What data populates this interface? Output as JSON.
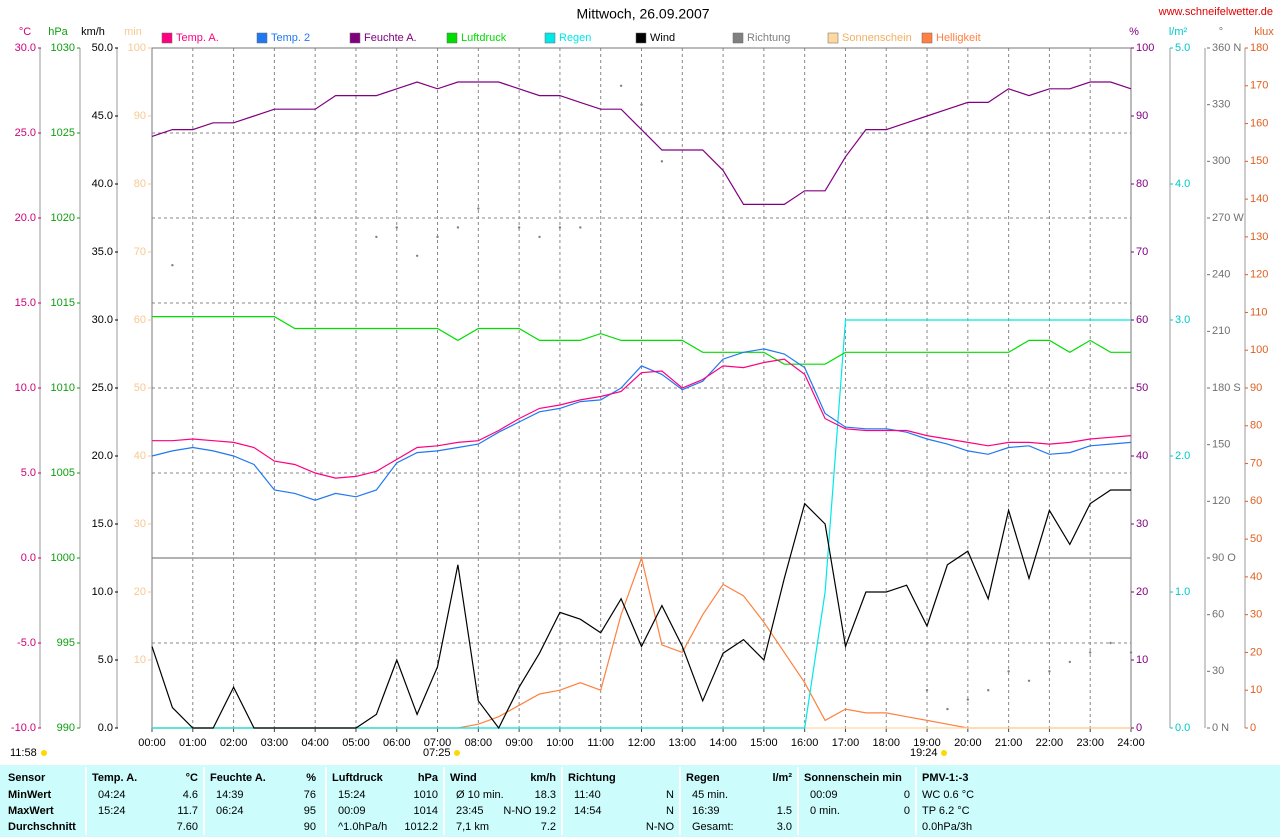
{
  "chart_data": {
    "type": "line",
    "title": "Mittwoch, 26.09.2007",
    "source": "www.schneifelwetter.de",
    "annotations": [
      "11:58",
      "07:25",
      "19:24"
    ],
    "grid": true,
    "x": [
      0,
      0.5,
      1,
      1.5,
      2,
      2.5,
      3,
      3.5,
      4,
      4.5,
      5,
      5.5,
      6,
      6.5,
      7,
      7.5,
      8,
      8.5,
      9,
      9.5,
      10,
      10.5,
      11,
      11.5,
      12,
      12.5,
      13,
      13.5,
      14,
      14.5,
      15,
      15.5,
      16,
      16.5,
      17,
      17.5,
      18,
      18.5,
      19,
      19.5,
      20,
      20.5,
      21,
      21.5,
      22,
      22.5,
      23,
      23.5,
      24
    ],
    "xlim": [
      0,
      24
    ],
    "xticks": [
      {
        "value": 0,
        "label": "00:00"
      },
      {
        "value": 1,
        "label": "01:00"
      },
      {
        "value": 2,
        "label": "02:00"
      },
      {
        "value": 3,
        "label": "03:00"
      },
      {
        "value": 4,
        "label": "04:00"
      },
      {
        "value": 5,
        "label": "05:00"
      },
      {
        "value": 6,
        "label": "06:00"
      },
      {
        "value": 7,
        "label": "07:00"
      },
      {
        "value": 8,
        "label": "08:00"
      },
      {
        "value": 9,
        "label": "09:00"
      },
      {
        "value": 10,
        "label": "10:00"
      },
      {
        "value": 11,
        "label": "11:00"
      },
      {
        "value": 12,
        "label": "12:00"
      },
      {
        "value": 13,
        "label": "13:00"
      },
      {
        "value": 14,
        "label": "14:00"
      },
      {
        "value": 15,
        "label": "15:00"
      },
      {
        "value": 16,
        "label": "16:00"
      },
      {
        "value": 17,
        "label": "17:00"
      },
      {
        "value": 18,
        "label": "18:00"
      },
      {
        "value": 19,
        "label": "19:00"
      },
      {
        "value": 20,
        "label": "20:00"
      },
      {
        "value": 21,
        "label": "21:00"
      },
      {
        "value": 22,
        "label": "22:00"
      },
      {
        "value": 23,
        "label": "23:00"
      },
      {
        "value": 24,
        "label": "24:00"
      }
    ],
    "axes": [
      {
        "unit": "°C",
        "color": "#d0007a",
        "lim": [
          -10,
          30
        ],
        "ticks": [
          {
            "value": -10,
            "label": "-10.0"
          },
          {
            "value": -5,
            "label": "-5.0"
          },
          {
            "value": 0,
            "label": "0.0"
          },
          {
            "value": 5,
            "label": "5.0"
          },
          {
            "value": 10,
            "label": "10.0"
          },
          {
            "value": 15,
            "label": "15.0"
          },
          {
            "value": 20,
            "label": "20.0"
          },
          {
            "value": 25,
            "label": "25.0"
          },
          {
            "value": 30,
            "label": "30.0"
          }
        ]
      },
      {
        "unit": "hPa",
        "color": "#10a010",
        "lim": [
          990,
          1030
        ],
        "ticks": [
          990,
          995,
          1000,
          1005,
          1010,
          1015,
          1020,
          1025,
          1030
        ]
      },
      {
        "unit": "km/h",
        "color": "#000000",
        "lim": [
          0,
          50
        ],
        "ticks": [
          {
            "value": 0,
            "label": "0.0"
          },
          {
            "value": 5,
            "label": "5.0"
          },
          {
            "value": 10,
            "label": "10.0"
          },
          {
            "value": 15,
            "label": "15.0"
          },
          {
            "value": 20,
            "label": "20.0"
          },
          {
            "value": 25,
            "label": "25.0"
          },
          {
            "value": 30,
            "label": "30.0"
          },
          {
            "value": 35,
            "label": "35.0"
          },
          {
            "value": 40,
            "label": "40.0"
          },
          {
            "value": 45,
            "label": "45.0"
          },
          {
            "value": 50,
            "label": "50.0"
          }
        ]
      },
      {
        "unit": "min",
        "color": "#f8c890",
        "lim": [
          0,
          100
        ],
        "ticks": [
          10,
          20,
          30,
          40,
          50,
          60,
          70,
          80,
          90,
          100
        ]
      },
      {
        "unit": "%",
        "color": "#800080",
        "lim": [
          0,
          100
        ],
        "ticks": [
          0,
          10,
          20,
          30,
          40,
          50,
          60,
          70,
          80,
          90,
          100
        ]
      },
      {
        "unit": "l/m²",
        "color": "#00c8c8",
        "lim": [
          0,
          5
        ],
        "ticks": [
          {
            "value": 0,
            "label": "0.0"
          },
          {
            "value": 1,
            "label": "1.0"
          },
          {
            "value": 2,
            "label": "2.0"
          },
          {
            "value": 3,
            "label": "3.0"
          },
          {
            "value": 4,
            "label": "4.0"
          },
          {
            "value": 5,
            "label": "5.0"
          }
        ]
      },
      {
        "unit": "°",
        "color": "#707070",
        "lim": [
          0,
          360
        ],
        "ticks": [
          {
            "value": 0,
            "label": "0 N"
          },
          30,
          60,
          {
            "value": 90,
            "label": "90 O"
          },
          120,
          150,
          {
            "value": 180,
            "label": "180 S"
          },
          210,
          240,
          {
            "value": 270,
            "label": "270 W"
          },
          300,
          330,
          {
            "value": 360,
            "label": "360 N"
          }
        ]
      },
      {
        "unit": "klux",
        "color": "#e06020",
        "lim": [
          0,
          180
        ],
        "ticks": [
          0,
          10,
          20,
          30,
          40,
          50,
          60,
          70,
          80,
          90,
          100,
          110,
          120,
          130,
          140,
          150,
          160,
          170,
          180
        ]
      }
    ],
    "series": [
      {
        "name": "Temp. A.",
        "color": "#ff0080",
        "axis": "°C",
        "values": [
          6.9,
          6.9,
          7.0,
          6.9,
          6.8,
          6.5,
          5.7,
          5.5,
          5.0,
          4.7,
          4.8,
          5.1,
          5.8,
          6.5,
          6.6,
          6.8,
          6.9,
          7.5,
          8.2,
          8.8,
          9.0,
          9.3,
          9.5,
          9.8,
          10.9,
          11.0,
          10.0,
          10.5,
          11.3,
          11.2,
          11.5,
          11.7,
          10.8,
          8.2,
          7.6,
          7.5,
          7.5,
          7.5,
          7.2,
          7.0,
          6.8,
          6.6,
          6.8,
          6.8,
          6.7,
          6.8,
          7.0,
          7.1,
          7.2
        ]
      },
      {
        "name": "Temp. 2",
        "color": "#2078f0",
        "axis": "°C",
        "values": [
          6.0,
          6.3,
          6.5,
          6.3,
          6.0,
          5.5,
          4.0,
          3.8,
          3.4,
          3.8,
          3.6,
          4.0,
          5.6,
          6.2,
          6.3,
          6.5,
          6.7,
          7.4,
          8.0,
          8.6,
          8.8,
          9.2,
          9.3,
          10.0,
          11.3,
          10.8,
          9.9,
          10.4,
          11.7,
          12.1,
          12.3,
          12.0,
          11.2,
          8.5,
          7.7,
          7.6,
          7.6,
          7.4,
          7.0,
          6.7,
          6.3,
          6.1,
          6.5,
          6.6,
          6.1,
          6.2,
          6.6,
          6.7,
          6.8
        ]
      },
      {
        "name": "Feuchte A.",
        "color": "#800080",
        "axis": "%",
        "values": [
          87,
          88,
          88,
          89,
          89,
          90,
          91,
          91,
          91,
          93,
          93,
          93,
          94,
          95,
          94,
          95,
          95,
          95,
          94,
          93,
          93,
          92,
          91,
          91,
          88,
          85,
          85,
          85,
          82,
          77,
          77,
          77,
          79,
          79,
          84,
          88,
          88,
          89,
          90,
          91,
          92,
          92,
          94,
          93,
          94,
          94,
          95,
          95,
          94
        ]
      },
      {
        "name": "Luftdruck",
        "color": "#00dd00",
        "axis": "hPa",
        "values": [
          1014.2,
          1014.2,
          1014.2,
          1014.2,
          1014.2,
          1014.2,
          1014.2,
          1013.5,
          1013.5,
          1013.5,
          1013.5,
          1013.5,
          1013.5,
          1013.5,
          1013.5,
          1012.8,
          1013.5,
          1013.5,
          1013.5,
          1012.8,
          1012.8,
          1012.8,
          1013.2,
          1012.8,
          1012.8,
          1012.8,
          1012.8,
          1012.1,
          1012.1,
          1012.1,
          1012.1,
          1011.4,
          1011.4,
          1011.4,
          1012.1,
          1012.1,
          1012.1,
          1012.1,
          1012.1,
          1012.1,
          1012.1,
          1012.1,
          1012.1,
          1012.8,
          1012.8,
          1012.1,
          1012.8,
          1012.1,
          1012.1
        ]
      },
      {
        "name": "Regen",
        "color": "#00e8e8",
        "axis": "l/m²",
        "values": [
          0,
          0,
          0,
          0,
          0,
          0,
          0,
          0,
          0,
          0,
          0,
          0,
          0,
          0,
          0,
          0,
          0,
          0,
          0,
          0,
          0,
          0,
          0,
          0,
          0,
          0,
          0,
          0,
          0,
          0,
          0,
          0,
          0,
          1.0,
          3.0,
          3.0,
          3.0,
          3.0,
          3.0,
          3.0,
          3.0,
          3.0,
          3.0,
          3.0,
          3.0,
          3.0,
          3.0,
          3.0,
          3.0
        ]
      },
      {
        "name": "Wind",
        "color": "#000000",
        "axis": "km/h",
        "values": [
          6.0,
          1.5,
          0,
          0,
          3.0,
          0,
          0,
          0,
          0,
          0,
          0,
          1.0,
          5.0,
          1.0,
          4.5,
          12.0,
          2.0,
          0,
          3.0,
          5.5,
          8.5,
          8.0,
          7.0,
          9.5,
          6.0,
          9.0,
          6.0,
          2.0,
          5.5,
          6.5,
          5.0,
          11.0,
          16.5,
          15.0,
          6.0,
          10.0,
          10.0,
          10.5,
          7.5,
          12.0,
          13.0,
          9.5,
          16.0,
          11.0,
          16.0,
          13.5,
          16.5,
          17.5,
          17.5
        ]
      },
      {
        "name": "Richtung",
        "color": "#808080",
        "axis": "°",
        "style": "points",
        "values": [
          null,
          245,
          null,
          null,
          null,
          null,
          null,
          null,
          null,
          null,
          null,
          260,
          265,
          250,
          260,
          265,
          275,
          null,
          265,
          260,
          265,
          265,
          null,
          340,
          330,
          300,
          null,
          null,
          null,
          null,
          null,
          null,
          null,
          null,
          305,
          null,
          null,
          null,
          20,
          10,
          15,
          20,
          30,
          25,
          30,
          35,
          40,
          45,
          40
        ]
      },
      {
        "name": "Sonnenschein",
        "color": "#ffd8a0",
        "axis": "min",
        "values": [
          0,
          0,
          0,
          0,
          0,
          0,
          0,
          0,
          0,
          0,
          0,
          0,
          0,
          0,
          0,
          0,
          0,
          0,
          0,
          0,
          0,
          0,
          0,
          0,
          0,
          0,
          0,
          0,
          0,
          0,
          0,
          0,
          0,
          0,
          0,
          0,
          0,
          0,
          0,
          0,
          0,
          0,
          0,
          0,
          0,
          0,
          0,
          0,
          0
        ]
      },
      {
        "name": "Helligkeit",
        "color": "#ff8040",
        "axis": "klux",
        "values": [
          0,
          0,
          0,
          0,
          0,
          0,
          0,
          0,
          0,
          0,
          0,
          0,
          0,
          0,
          0,
          0,
          1,
          3,
          6,
          9,
          10,
          12,
          10,
          30,
          45,
          22,
          20,
          30,
          38,
          35,
          28,
          20,
          12,
          2,
          5,
          4,
          4,
          3,
          2,
          1,
          0,
          0,
          0,
          0,
          0,
          0,
          0,
          0,
          0
        ]
      }
    ]
  },
  "table": {
    "sensor_column": [
      "Sensor",
      "MinWert",
      "MaxWert",
      "Durchschnitt"
    ],
    "groups": [
      {
        "title": "Temp. A.",
        "unit": "°C",
        "rows": [
          [
            "04:24",
            "4.6"
          ],
          [
            "15:24",
            "11.7"
          ],
          [
            null,
            "7.60"
          ]
        ]
      },
      {
        "title": "Feuchte A.",
        "unit": "%",
        "rows": [
          [
            "14:39",
            "76"
          ],
          [
            "06:24",
            "95"
          ],
          [
            null,
            "90"
          ]
        ]
      },
      {
        "title": "Luftdruck",
        "unit": "hPa",
        "rows": [
          [
            "15:24",
            "1010"
          ],
          [
            "00:09",
            "1014"
          ],
          [
            "^1.0hPa/h",
            "1012.2"
          ]
        ]
      },
      {
        "title": "Wind",
        "unit": "km/h",
        "rows": [
          [
            "Ø 10 min.",
            "18.3"
          ],
          [
            "23:45",
            "N-NO 19.2"
          ],
          [
            "7,1 km",
            "7.2"
          ]
        ]
      },
      {
        "title": "Richtung",
        "rows": [
          [
            "11:40",
            "N"
          ],
          [
            "14:54",
            "N"
          ],
          [
            null,
            "N-NO"
          ]
        ]
      },
      {
        "title": "Regen",
        "unit": "l/m²",
        "rows": [
          [
            "45 min.",
            null
          ],
          [
            "16:39",
            "1.5"
          ],
          [
            "Gesamt:",
            "3.0"
          ]
        ]
      },
      {
        "title": "Sonnenschein min",
        "rows": [
          [
            "00:09",
            "0"
          ],
          [
            "0 min.",
            "0"
          ],
          [
            null,
            null
          ]
        ]
      },
      {
        "title": "PMV-1:-3",
        "rows": [
          [
            "WC 0.6 °C",
            null
          ],
          [
            "TP 6.2 °C",
            null
          ],
          [
            "0.0hPa/3h",
            null
          ]
        ]
      }
    ]
  }
}
